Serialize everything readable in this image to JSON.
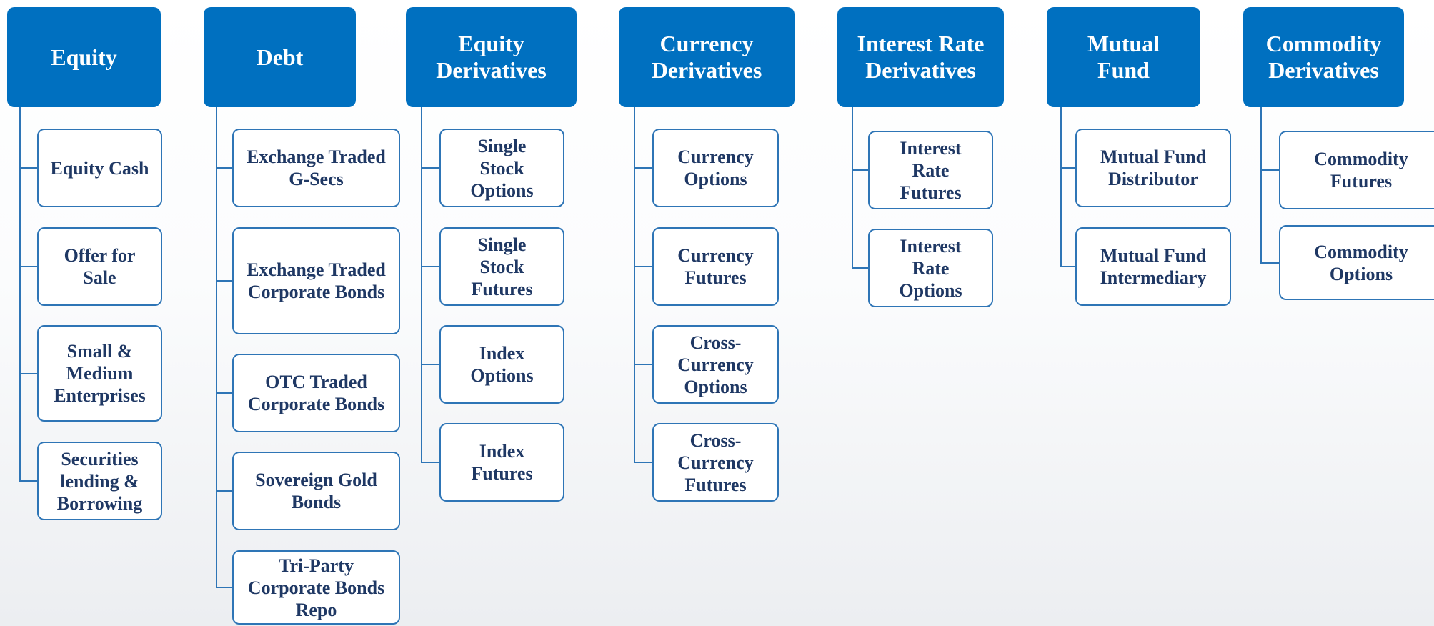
{
  "columns": [
    {
      "title": "Equity",
      "items": [
        "Equity Cash",
        "Offer for Sale",
        "Small & Medium Enterprises",
        "Securities lending & Borrowing"
      ]
    },
    {
      "title": "Debt",
      "items": [
        "Exchange Traded G-Secs",
        "Exchange Traded Corporate Bonds",
        "OTC Traded Corporate Bonds",
        "Sovereign Gold Bonds",
        "Tri-Party Corporate Bonds Repo"
      ]
    },
    {
      "title": "Equity Derivatives",
      "items": [
        "Single Stock Options",
        "Single Stock Futures",
        "Index Options",
        "Index Futures"
      ]
    },
    {
      "title": "Currency Derivatives",
      "items": [
        "Currency Options",
        "Currency Futures",
        "Cross-Currency Options",
        "Cross-Currency Futures"
      ]
    },
    {
      "title": "Interest Rate Derivatives",
      "items": [
        "Interest Rate Futures",
        "Interest Rate Options"
      ]
    },
    {
      "title": "Mutual Fund",
      "items": [
        "Mutual Fund Distributor",
        "Mutual Fund Intermediary"
      ]
    },
    {
      "title": "Commodity Derivatives",
      "items": [
        "Commodity Futures",
        "Commodity Options"
      ]
    }
  ]
}
